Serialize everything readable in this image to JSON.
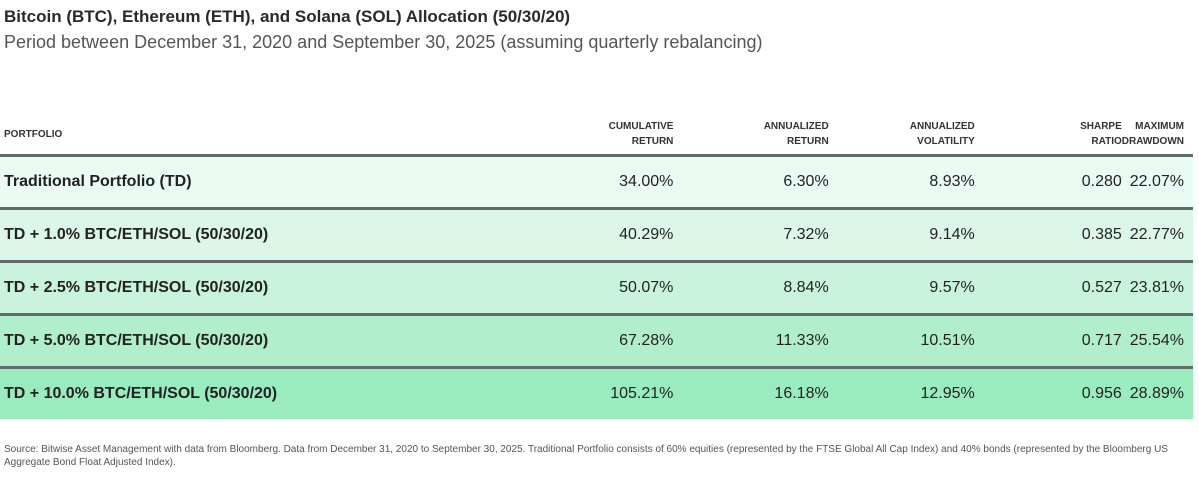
{
  "title": "Bitcoin (BTC), Ethereum (ETH), and Solana (SOL) Allocation (50/30/20)",
  "subtitle": "Period between December 31, 2020 and September 30, 2025 (assuming quarterly rebalancing)",
  "table": {
    "headers": [
      [
        "PORTFOLIO",
        ""
      ],
      [
        "CUMULATIVE",
        "RETURN"
      ],
      [
        "ANNUALIZED",
        "RETURN"
      ],
      [
        "ANNUALIZED",
        "VOLATILITY"
      ],
      [
        "SHARPE",
        "RATIO"
      ],
      [
        "MAXIMUM",
        "DRAWDOWN"
      ]
    ],
    "rows": [
      {
        "bg": "#e9fbf2",
        "cells": [
          "Traditional Portfolio (TD)",
          "34.00%",
          "6.30%",
          "8.93%",
          "0.280",
          "22.07%"
        ]
      },
      {
        "bg": "#dcf7e8",
        "cells": [
          "TD + 1.0% BTC/ETH/SOL (50/30/20)",
          "40.29%",
          "7.32%",
          "9.14%",
          "0.385",
          "22.77%"
        ]
      },
      {
        "bg": "#c9f3dc",
        "cells": [
          "TD + 2.5% BTC/ETH/SOL (50/30/20)",
          "50.07%",
          "8.84%",
          "9.57%",
          "0.527",
          "23.81%"
        ]
      },
      {
        "bg": "#b1efcc",
        "cells": [
          "TD + 5.0% BTC/ETH/SOL (50/30/20)",
          "67.28%",
          "11.33%",
          "10.51%",
          "0.717",
          "25.54%"
        ]
      },
      {
        "bg": "#9aecbf",
        "cells": [
          "TD + 10.0% BTC/ETH/SOL (50/30/20)",
          "105.21%",
          "16.18%",
          "12.95%",
          "0.956",
          "28.89%"
        ]
      }
    ]
  },
  "footer": "Source: Bitwise Asset Management with data from Bloomberg. Data from December 31, 2020 to September 30, 2025. Traditional Portfolio consists of 60% equities (represented by the FTSE Global All Cap Index) and 40% bonds (represented by the Bloomberg US Aggregate Bond Float Adjusted Index)."
}
